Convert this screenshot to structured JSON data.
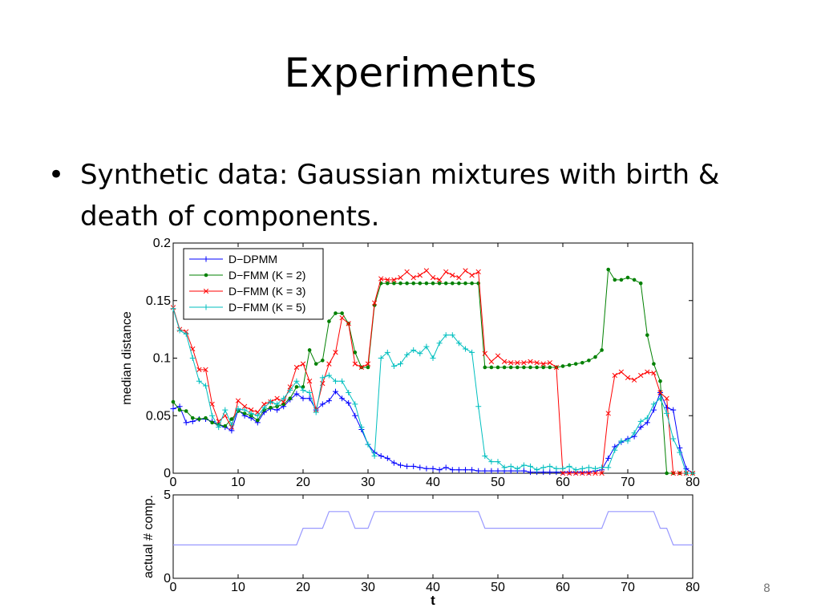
{
  "slide": {
    "title": "Experiments",
    "bullet": "Synthetic data: Gaussian mixtures with birth & death of components.",
    "page_number": "8"
  },
  "chart_data": [
    {
      "type": "line",
      "ylabel": "median distance",
      "xlim": [
        0,
        80
      ],
      "ylim": [
        0,
        0.2
      ],
      "xticks": [
        "0",
        "10",
        "20",
        "30",
        "40",
        "50",
        "60",
        "70",
        "80"
      ],
      "yticks": [
        "0",
        "0.05",
        "0.1",
        "0.15",
        "0.2"
      ],
      "legend_position": "top-left",
      "x": [
        0,
        1,
        2,
        3,
        4,
        5,
        6,
        7,
        8,
        9,
        10,
        11,
        12,
        13,
        14,
        15,
        16,
        17,
        18,
        19,
        20,
        21,
        22,
        23,
        24,
        25,
        26,
        27,
        28,
        29,
        30,
        31,
        32,
        33,
        34,
        35,
        36,
        37,
        38,
        39,
        40,
        41,
        42,
        43,
        44,
        45,
        46,
        47,
        48,
        49,
        50,
        51,
        52,
        53,
        54,
        55,
        56,
        57,
        58,
        59,
        60,
        61,
        62,
        63,
        64,
        65,
        66,
        67,
        68,
        69,
        70,
        71,
        72,
        73,
        74,
        75,
        76,
        77,
        78,
        79,
        80
      ],
      "series": [
        {
          "name": "D−DPMM",
          "color": "#0000ff",
          "marker": "+",
          "values": [
            0.056,
            0.058,
            0.044,
            0.045,
            0.047,
            0.047,
            0.045,
            0.042,
            0.04,
            0.037,
            0.055,
            0.05,
            0.048,
            0.044,
            0.053,
            0.056,
            0.055,
            0.058,
            0.064,
            0.069,
            0.065,
            0.065,
            0.055,
            0.06,
            0.063,
            0.071,
            0.065,
            0.061,
            0.05,
            0.038,
            0.025,
            0.018,
            0.015,
            0.013,
            0.009,
            0.007,
            0.006,
            0.006,
            0.005,
            0.004,
            0.004,
            0.003,
            0.005,
            0.003,
            0.003,
            0.003,
            0.003,
            0.002,
            0.002,
            0.002,
            0.002,
            0.002,
            0.002,
            0.002,
            0.002,
            0.001,
            0.001,
            0.001,
            0.001,
            0.001,
            0.001,
            0.001,
            0.001,
            0.001,
            0.001,
            0.002,
            0.003,
            0.013,
            0.023,
            0.027,
            0.03,
            0.032,
            0.04,
            0.044,
            0.055,
            0.07,
            0.057,
            0.055,
            0.022,
            0.004,
            0.0
          ]
        },
        {
          "name": "D−FMM (K = 2)",
          "color": "#008000",
          "marker": "dot",
          "values": [
            0.062,
            0.055,
            0.054,
            0.048,
            0.047,
            0.048,
            0.044,
            0.042,
            0.041,
            0.047,
            0.054,
            0.052,
            0.05,
            0.046,
            0.055,
            0.057,
            0.058,
            0.06,
            0.065,
            0.075,
            0.075,
            0.107,
            0.095,
            0.098,
            0.132,
            0.139,
            0.139,
            0.13,
            0.105,
            0.092,
            0.092,
            0.146,
            0.165,
            0.165,
            0.165,
            0.165,
            0.165,
            0.165,
            0.165,
            0.165,
            0.165,
            0.165,
            0.165,
            0.165,
            0.165,
            0.165,
            0.165,
            0.165,
            0.092,
            0.092,
            0.092,
            0.092,
            0.092,
            0.092,
            0.092,
            0.092,
            0.092,
            0.092,
            0.092,
            0.092,
            0.093,
            0.094,
            0.095,
            0.096,
            0.098,
            0.101,
            0.107,
            0.177,
            0.168,
            0.168,
            0.17,
            0.168,
            0.165,
            0.12,
            0.095,
            0.08,
            0.0,
            0.0,
            0.0,
            0.0,
            0.0
          ]
        },
        {
          "name": "D−FMM (K = 3)",
          "color": "#ff0000",
          "marker": "x",
          "values": [
            0.144,
            0.125,
            0.123,
            0.108,
            0.09,
            0.09,
            0.06,
            0.045,
            0.05,
            0.04,
            0.063,
            0.058,
            0.055,
            0.053,
            0.06,
            0.062,
            0.065,
            0.062,
            0.075,
            0.092,
            0.095,
            0.08,
            0.055,
            0.078,
            0.095,
            0.105,
            0.135,
            0.13,
            0.095,
            0.092,
            0.095,
            0.148,
            0.169,
            0.168,
            0.168,
            0.17,
            0.175,
            0.17,
            0.172,
            0.176,
            0.17,
            0.168,
            0.175,
            0.172,
            0.17,
            0.176,
            0.172,
            0.175,
            0.104,
            0.097,
            0.102,
            0.097,
            0.096,
            0.096,
            0.096,
            0.097,
            0.096,
            0.095,
            0.096,
            0.092,
            0.0,
            0.0,
            0.0,
            0.0,
            0.0,
            0.0,
            0.0,
            0.052,
            0.085,
            0.088,
            0.083,
            0.081,
            0.085,
            0.088,
            0.087,
            0.07,
            0.065,
            0.0,
            0.0,
            0.0,
            0.0
          ]
        },
        {
          "name": "D−FMM (K = 5)",
          "color": "#00bfbf",
          "marker": "+",
          "values": [
            0.143,
            0.124,
            0.121,
            0.1,
            0.08,
            0.076,
            0.05,
            0.04,
            0.055,
            0.042,
            0.056,
            0.055,
            0.052,
            0.05,
            0.057,
            0.062,
            0.06,
            0.065,
            0.072,
            0.08,
            0.072,
            0.07,
            0.053,
            0.083,
            0.085,
            0.08,
            0.08,
            0.07,
            0.06,
            0.04,
            0.025,
            0.015,
            0.1,
            0.105,
            0.093,
            0.095,
            0.103,
            0.107,
            0.104,
            0.11,
            0.1,
            0.113,
            0.12,
            0.12,
            0.113,
            0.108,
            0.105,
            0.058,
            0.015,
            0.01,
            0.01,
            0.005,
            0.006,
            0.004,
            0.007,
            0.006,
            0.003,
            0.005,
            0.006,
            0.004,
            0.004,
            0.006,
            0.003,
            0.004,
            0.005,
            0.004,
            0.005,
            0.005,
            0.02,
            0.028,
            0.028,
            0.035,
            0.045,
            0.048,
            0.06,
            0.065,
            0.052,
            0.03,
            0.018,
            0.0,
            0.0
          ]
        }
      ]
    },
    {
      "type": "line",
      "xlabel": "t",
      "ylabel": "actual # comp.",
      "xlim": [
        0,
        80
      ],
      "ylim": [
        0,
        5
      ],
      "xticks": [
        "0",
        "10",
        "20",
        "30",
        "40",
        "50",
        "60",
        "70",
        "80"
      ],
      "yticks": [
        "0",
        "5"
      ],
      "series": [
        {
          "color": "#9999ff",
          "x": [
            0,
            19,
            20,
            22,
            23,
            24,
            26,
            27,
            28,
            30,
            31,
            47,
            48,
            66,
            67,
            74,
            75,
            76,
            77,
            80
          ],
          "values": [
            2,
            2,
            3,
            3,
            3,
            4,
            4,
            4,
            3,
            3,
            4,
            4,
            3,
            3,
            4,
            4,
            3,
            3,
            2,
            2
          ]
        }
      ]
    }
  ]
}
